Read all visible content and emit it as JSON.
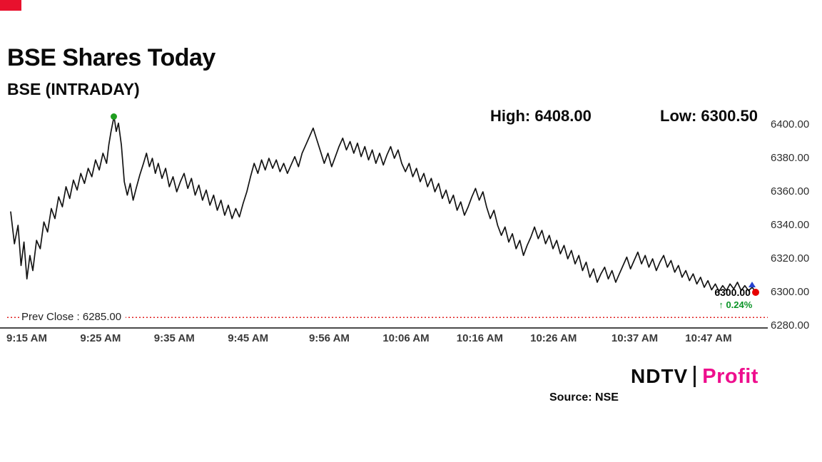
{
  "header": {
    "tag_color": "#e8112d",
    "title": "BSE Shares Today",
    "subtitle": "BSE (INTRADAY)",
    "high_label": "High: 6408.00",
    "low_label": "Low: 6300.50"
  },
  "footer": {
    "source": "Source: NSE",
    "brand": {
      "ndtv": "NDTV",
      "separator": "|",
      "profit": "Profit",
      "profit_color": "#ee0e8d"
    }
  },
  "chart_data": {
    "type": "line",
    "title": "BSE Shares Today",
    "symbol": "BSE (INTRADAY)",
    "high": 6408.0,
    "low": 6300.5,
    "prev_close": 6285.0,
    "prev_close_label": "Prev Close : 6285.00",
    "last_price_label": "6300.00",
    "last_change_label": "↑ 0.24%",
    "line_color": "#141414",
    "prev_close_line_color": "#e02020",
    "high_marker_color": "#1f9e1f",
    "last_marker_color": "#e60000",
    "last_triangle_color": "#2742d0",
    "change_color": "#0a9427",
    "x_unit": "minutes since 09:15 AM",
    "ylim": [
      6280,
      6410
    ],
    "grid": false,
    "legend": false,
    "y_ticks": [
      {
        "v": 6400,
        "label": "6400.00"
      },
      {
        "v": 6380,
        "label": "6380.00"
      },
      {
        "v": 6360,
        "label": "6360.00"
      },
      {
        "v": 6340,
        "label": "6340.00"
      },
      {
        "v": 6320,
        "label": "6320.00"
      },
      {
        "v": 6300,
        "label": "6300.00"
      },
      {
        "v": 6280,
        "label": "6280.00"
      }
    ],
    "x_ticks": [
      {
        "t": 0,
        "label": "9:15 AM"
      },
      {
        "t": 10,
        "label": "9:25 AM"
      },
      {
        "t": 20,
        "label": "9:35 AM"
      },
      {
        "t": 30,
        "label": "9:45 AM"
      },
      {
        "t": 41,
        "label": "9:56 AM"
      },
      {
        "t": 51,
        "label": "10:06 AM"
      },
      {
        "t": 61,
        "label": "10:16 AM"
      },
      {
        "t": 71,
        "label": "10:26 AM"
      },
      {
        "t": 82,
        "label": "10:37 AM"
      },
      {
        "t": 92,
        "label": "10:47 AM"
      }
    ],
    "series": [
      [
        0,
        6348
      ],
      [
        0.5,
        6329
      ],
      [
        1,
        6340
      ],
      [
        1.4,
        6316
      ],
      [
        1.8,
        6330
      ],
      [
        2.2,
        6308
      ],
      [
        2.6,
        6322
      ],
      [
        3,
        6313
      ],
      [
        3.5,
        6331
      ],
      [
        4,
        6326
      ],
      [
        4.5,
        6342
      ],
      [
        5,
        6336
      ],
      [
        5.5,
        6350
      ],
      [
        6,
        6344
      ],
      [
        6.5,
        6357
      ],
      [
        7,
        6351
      ],
      [
        7.5,
        6363
      ],
      [
        8,
        6356
      ],
      [
        8.5,
        6367
      ],
      [
        9,
        6361
      ],
      [
        9.5,
        6371
      ],
      [
        10,
        6365
      ],
      [
        10.5,
        6374
      ],
      [
        11,
        6369
      ],
      [
        11.5,
        6379
      ],
      [
        12,
        6373
      ],
      [
        12.5,
        6383
      ],
      [
        13,
        6377
      ],
      [
        13.3,
        6388
      ],
      [
        13.6,
        6396
      ],
      [
        14,
        6405
      ],
      [
        14.3,
        6396
      ],
      [
        14.6,
        6401
      ],
      [
        15,
        6388
      ],
      [
        15.4,
        6366
      ],
      [
        15.8,
        6358
      ],
      [
        16.2,
        6365
      ],
      [
        16.6,
        6355
      ],
      [
        17,
        6362
      ],
      [
        17.5,
        6370
      ],
      [
        18,
        6377
      ],
      [
        18.4,
        6383
      ],
      [
        18.8,
        6375
      ],
      [
        19.2,
        6380
      ],
      [
        19.6,
        6371
      ],
      [
        20,
        6377
      ],
      [
        20.5,
        6368
      ],
      [
        21,
        6374
      ],
      [
        21.5,
        6363
      ],
      [
        22,
        6369
      ],
      [
        22.5,
        6360
      ],
      [
        23,
        6366
      ],
      [
        23.5,
        6371
      ],
      [
        24,
        6362
      ],
      [
        24.5,
        6368
      ],
      [
        25,
        6358
      ],
      [
        25.5,
        6364
      ],
      [
        26,
        6355
      ],
      [
        26.5,
        6361
      ],
      [
        27,
        6352
      ],
      [
        27.5,
        6358
      ],
      [
        28,
        6349
      ],
      [
        28.5,
        6355
      ],
      [
        29,
        6346
      ],
      [
        29.5,
        6352
      ],
      [
        30,
        6344
      ],
      [
        30.5,
        6350
      ],
      [
        31,
        6345
      ],
      [
        31.5,
        6353
      ],
      [
        32,
        6360
      ],
      [
        32.5,
        6369
      ],
      [
        33,
        6377
      ],
      [
        33.5,
        6371
      ],
      [
        34,
        6379
      ],
      [
        34.5,
        6373
      ],
      [
        35,
        6380
      ],
      [
        35.5,
        6374
      ],
      [
        36,
        6379
      ],
      [
        36.5,
        6372
      ],
      [
        37,
        6377
      ],
      [
        37.5,
        6371
      ],
      [
        38,
        6376
      ],
      [
        38.5,
        6381
      ],
      [
        39,
        6375
      ],
      [
        39.5,
        6383
      ],
      [
        40,
        6388
      ],
      [
        40.5,
        6393
      ],
      [
        41,
        6398
      ],
      [
        41.5,
        6391
      ],
      [
        42,
        6384
      ],
      [
        42.5,
        6377
      ],
      [
        43,
        6383
      ],
      [
        43.5,
        6375
      ],
      [
        44,
        6381
      ],
      [
        44.5,
        6387
      ],
      [
        45,
        6392
      ],
      [
        45.5,
        6385
      ],
      [
        46,
        6390
      ],
      [
        46.5,
        6383
      ],
      [
        47,
        6389
      ],
      [
        47.5,
        6381
      ],
      [
        48,
        6387
      ],
      [
        48.5,
        6379
      ],
      [
        49,
        6385
      ],
      [
        49.5,
        6377
      ],
      [
        50,
        6383
      ],
      [
        50.5,
        6376
      ],
      [
        51,
        6382
      ],
      [
        51.5,
        6387
      ],
      [
        52,
        6380
      ],
      [
        52.5,
        6385
      ],
      [
        53,
        6377
      ],
      [
        53.5,
        6372
      ],
      [
        54,
        6377
      ],
      [
        54.5,
        6369
      ],
      [
        55,
        6374
      ],
      [
        55.5,
        6366
      ],
      [
        56,
        6371
      ],
      [
        56.5,
        6363
      ],
      [
        57,
        6368
      ],
      [
        57.5,
        6360
      ],
      [
        58,
        6365
      ],
      [
        58.5,
        6356
      ],
      [
        59,
        6361
      ],
      [
        59.5,
        6353
      ],
      [
        60,
        6358
      ],
      [
        60.5,
        6349
      ],
      [
        61,
        6354
      ],
      [
        61.5,
        6346
      ],
      [
        62,
        6351
      ],
      [
        62.5,
        6357
      ],
      [
        63,
        6362
      ],
      [
        63.5,
        6355
      ],
      [
        64,
        6360
      ],
      [
        64.5,
        6351
      ],
      [
        65,
        6344
      ],
      [
        65.5,
        6349
      ],
      [
        66,
        6340
      ],
      [
        66.5,
        6334
      ],
      [
        67,
        6339
      ],
      [
        67.5,
        6330
      ],
      [
        68,
        6335
      ],
      [
        68.5,
        6326
      ],
      [
        69,
        6331
      ],
      [
        69.5,
        6322
      ],
      [
        70,
        6328
      ],
      [
        70.5,
        6333
      ],
      [
        71,
        6339
      ],
      [
        71.5,
        6332
      ],
      [
        72,
        6337
      ],
      [
        72.5,
        6329
      ],
      [
        73,
        6334
      ],
      [
        73.5,
        6326
      ],
      [
        74,
        6331
      ],
      [
        74.5,
        6323
      ],
      [
        75,
        6328
      ],
      [
        75.5,
        6320
      ],
      [
        76,
        6325
      ],
      [
        76.5,
        6317
      ],
      [
        77,
        6322
      ],
      [
        77.5,
        6313
      ],
      [
        78,
        6318
      ],
      [
        78.5,
        6309
      ],
      [
        79,
        6314
      ],
      [
        79.5,
        6306
      ],
      [
        80,
        6311
      ],
      [
        80.5,
        6315
      ],
      [
        81,
        6308
      ],
      [
        81.5,
        6313
      ],
      [
        82,
        6306
      ],
      [
        82.5,
        6311
      ],
      [
        83,
        6316
      ],
      [
        83.5,
        6321
      ],
      [
        84,
        6314
      ],
      [
        84.5,
        6319
      ],
      [
        85,
        6324
      ],
      [
        85.5,
        6317
      ],
      [
        86,
        6322
      ],
      [
        86.5,
        6315
      ],
      [
        87,
        6320
      ],
      [
        87.5,
        6313
      ],
      [
        88,
        6318
      ],
      [
        88.5,
        6322
      ],
      [
        89,
        6315
      ],
      [
        89.5,
        6319
      ],
      [
        90,
        6312
      ],
      [
        90.5,
        6316
      ],
      [
        91,
        6309
      ],
      [
        91.5,
        6313
      ],
      [
        92,
        6307
      ],
      [
        92.5,
        6311
      ],
      [
        93,
        6305
      ],
      [
        93.5,
        6309
      ],
      [
        94,
        6303
      ],
      [
        94.5,
        6307
      ],
      [
        95,
        6301.5
      ],
      [
        95.5,
        6305
      ],
      [
        96,
        6300.5
      ],
      [
        96.5,
        6304
      ],
      [
        97,
        6301
      ],
      [
        97.5,
        6305
      ],
      [
        98,
        6302
      ],
      [
        98.5,
        6306
      ],
      [
        99,
        6301
      ],
      [
        99.5,
        6304
      ],
      [
        100,
        6301
      ],
      [
        100.5,
        6303
      ],
      [
        101,
        6300
      ]
    ]
  }
}
